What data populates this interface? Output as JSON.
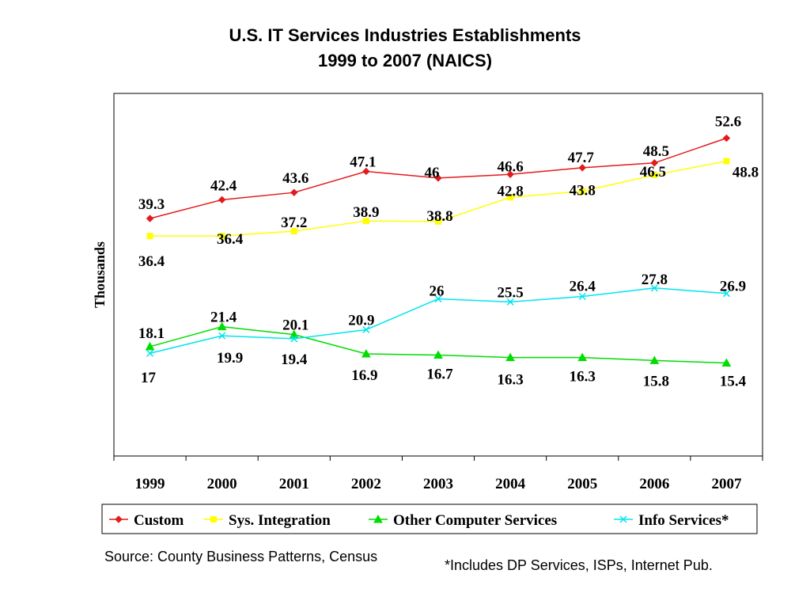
{
  "chart_data": {
    "type": "line",
    "title": "U.S. IT Services Industries Establishments",
    "subtitle": "1999 to 2007 (NAICS)",
    "xlabel": "",
    "ylabel": "Thousands",
    "categories": [
      "1999",
      "2000",
      "2001",
      "2002",
      "2003",
      "2004",
      "2005",
      "2006",
      "2007"
    ],
    "ylim": [
      0,
      60
    ],
    "grid": false,
    "legend_position": "bottom",
    "series": [
      {
        "name": "Custom",
        "color": "#e31a1c",
        "marker": "diamond",
        "values": [
          39.3,
          42.4,
          43.6,
          47.1,
          46,
          46.6,
          47.7,
          48.5,
          52.6
        ]
      },
      {
        "name": "Sys. Integration",
        "color": "#ffff00",
        "marker": "square",
        "values": [
          36.4,
          36.4,
          37.2,
          38.9,
          38.8,
          42.8,
          43.8,
          46.5,
          48.8
        ]
      },
      {
        "name": "Other Computer  Services",
        "color": "#00dd00",
        "marker": "triangle",
        "values": [
          18.1,
          21.4,
          20.1,
          16.9,
          16.7,
          16.3,
          16.3,
          15.8,
          15.4
        ]
      },
      {
        "name": "Info Services*",
        "color": "#00e5ee",
        "marker": "x",
        "values": [
          17,
          19.9,
          19.4,
          20.9,
          26,
          25.5,
          26.4,
          27.8,
          26.9
        ]
      }
    ]
  },
  "notes": {
    "source": "Source:  County Business Patterns, Census",
    "footnote": "*Includes DP Services, ISPs, Internet Pub."
  }
}
